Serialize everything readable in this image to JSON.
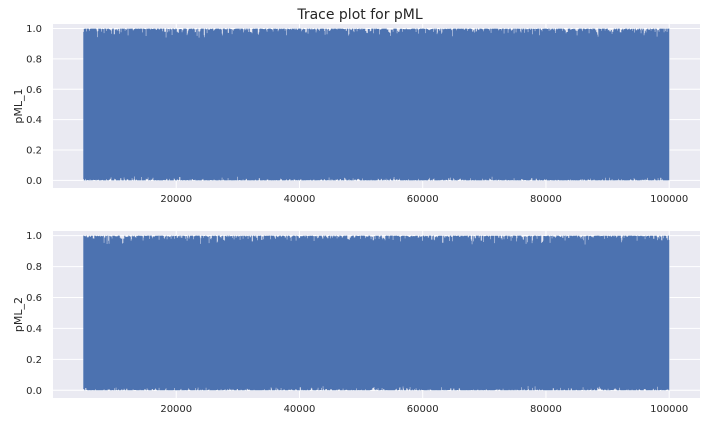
{
  "chart_data": {
    "type": "line",
    "title": "Trace plot for pML",
    "colors": {
      "series": "#4c72b0",
      "axes_background": "#eaeaf2",
      "grid": "#ffffff"
    },
    "grid": true,
    "panels": [
      {
        "ylabel": "pML_1",
        "xlim": [
          0,
          105000
        ],
        "ylim": [
          -0.05,
          1.03
        ],
        "xticks": [
          20000,
          40000,
          60000,
          80000,
          100000
        ],
        "xtick_labels": [
          "20000",
          "40000",
          "60000",
          "80000",
          "100000"
        ],
        "yticks": [
          0.0,
          0.2,
          0.4,
          0.6,
          0.8,
          1.0
        ],
        "ytick_labels": [
          "0.0",
          "0.2",
          "0.4",
          "0.6",
          "0.8",
          "1.0"
        ],
        "series": [
          {
            "x_range": [
              5000,
              100000
            ],
            "y_range": [
              0.0,
              1.0
            ]
          }
        ]
      },
      {
        "ylabel": "pML_2",
        "xlim": [
          0,
          105000
        ],
        "ylim": [
          -0.05,
          1.03
        ],
        "xticks": [
          20000,
          40000,
          60000,
          80000,
          100000
        ],
        "xtick_labels": [
          "20000",
          "40000",
          "60000",
          "80000",
          "100000"
        ],
        "yticks": [
          0.0,
          0.2,
          0.4,
          0.6,
          0.8,
          1.0
        ],
        "ytick_labels": [
          "0.0",
          "0.2",
          "0.4",
          "0.6",
          "0.8",
          "1.0"
        ],
        "series": [
          {
            "x_range": [
              5000,
              100000
            ],
            "y_range": [
              0.0,
              1.0
            ]
          }
        ]
      }
    ]
  }
}
